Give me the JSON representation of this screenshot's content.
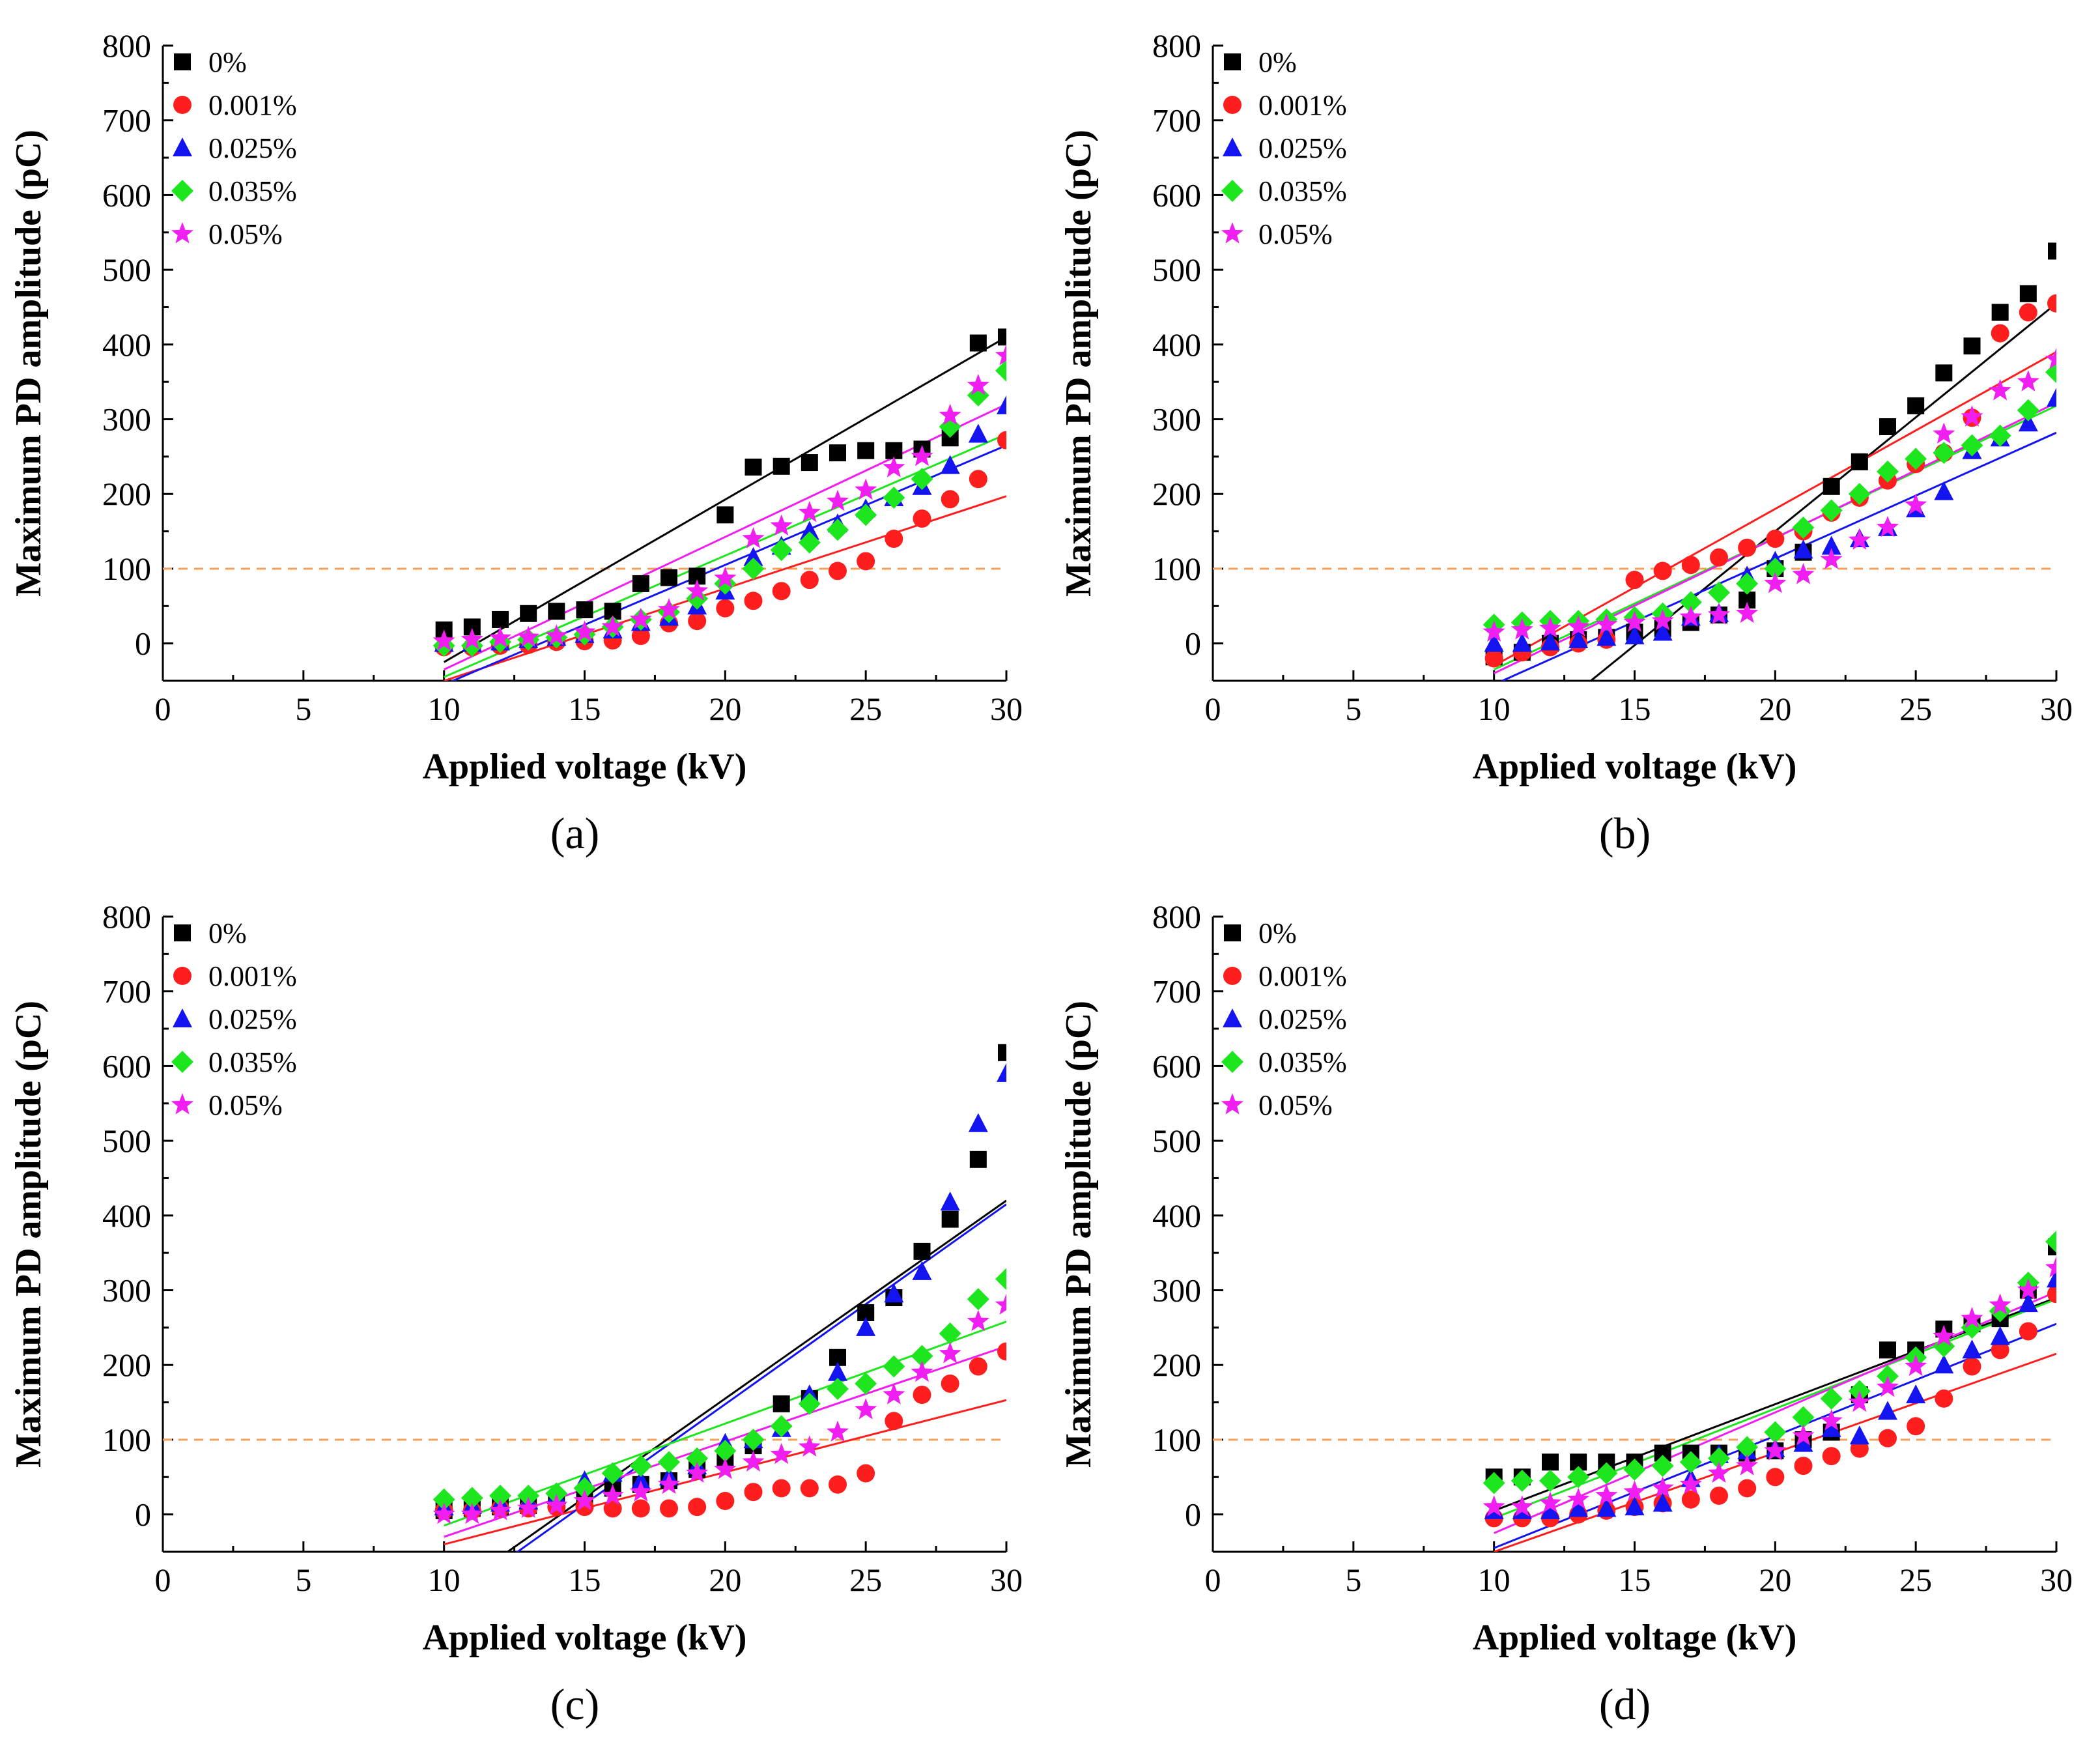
{
  "xlabel": "Applied voltage (kV)",
  "ylabel": "Maximum PD amplitude (pC)",
  "xlim": [
    0,
    30
  ],
  "ylim": [
    -50,
    800
  ],
  "xticks": [
    0,
    5,
    10,
    15,
    20,
    25,
    30
  ],
  "yticks": [
    0,
    100,
    200,
    300,
    400,
    500,
    600,
    700,
    800
  ],
  "reference_line": {
    "y": 100,
    "color": "#f5a05a"
  },
  "series_styles": [
    {
      "name": "0%",
      "color": "#000000",
      "marker": "square"
    },
    {
      "name": "0.001%",
      "color": "#ff1e1e",
      "marker": "circle"
    },
    {
      "name": "0.025%",
      "color": "#1414f0",
      "marker": "triangle"
    },
    {
      "name": "0.035%",
      "color": "#1ee61e",
      "marker": "diamond"
    },
    {
      "name": "0.05%",
      "color": "#f01ef0",
      "marker": "star"
    }
  ],
  "chart_data": [
    {
      "type": "scatter",
      "panel_label": "(a)",
      "title": "",
      "x": [
        10,
        11,
        12,
        13,
        14,
        15,
        16,
        17,
        18,
        19,
        20,
        21,
        22,
        23,
        24,
        25,
        26,
        27,
        28,
        29,
        30
      ],
      "series": [
        {
          "name": "0%",
          "values": [
            18,
            22,
            32,
            40,
            43,
            45,
            43,
            80,
            88,
            90,
            172,
            236,
            237,
            242,
            255,
            258,
            258,
            260,
            275,
            402,
            410
          ],
          "fit": [
            -25,
            410
          ]
        },
        {
          "name": "0.001%",
          "values": [
            -5,
            -5,
            -3,
            -2,
            2,
            3,
            4,
            10,
            27,
            30,
            47,
            57,
            70,
            85,
            97,
            110,
            140,
            167,
            193,
            220,
            272
          ],
          "fit": [
            -50,
            197
          ]
        },
        {
          "name": "0.025%",
          "values": [
            0,
            0,
            2,
            5,
            8,
            12,
            18,
            28,
            35,
            50,
            70,
            115,
            130,
            150,
            160,
            180,
            195,
            210,
            238,
            280,
            318
          ],
          "fit": [
            -55,
            265
          ]
        },
        {
          "name": "0.035%",
          "values": [
            -3,
            -3,
            2,
            5,
            8,
            12,
            22,
            32,
            42,
            60,
            80,
            100,
            125,
            135,
            152,
            172,
            195,
            220,
            290,
            332,
            365
          ],
          "fit": [
            -45,
            280
          ]
        },
        {
          "name": "0.05%",
          "values": [
            3,
            5,
            7,
            8,
            10,
            15,
            22,
            32,
            45,
            70,
            87,
            140,
            157,
            175,
            190,
            205,
            235,
            250,
            305,
            345,
            385
          ],
          "fit": [
            -35,
            320
          ]
        }
      ]
    },
    {
      "type": "scatter",
      "panel_label": "(b)",
      "title": "",
      "x": [
        10,
        11,
        12,
        13,
        14,
        15,
        16,
        17,
        18,
        19,
        20,
        21,
        22,
        23,
        24,
        25,
        26,
        27,
        28,
        29,
        30
      ],
      "series": [
        {
          "name": "0%",
          "values": [
            -18,
            -12,
            0,
            5,
            8,
            15,
            20,
            28,
            38,
            58,
            100,
            122,
            210,
            243,
            290,
            318,
            362,
            398,
            443,
            468,
            525
          ],
          "fit": [
            -155,
            455
          ]
        },
        {
          "name": "0.001%",
          "values": [
            -20,
            -12,
            -5,
            0,
            5,
            85,
            97,
            105,
            115,
            128,
            140,
            150,
            175,
            195,
            218,
            240,
            255,
            302,
            415,
            443,
            455
          ],
          "fit": [
            -30,
            390
          ]
        },
        {
          "name": "0.025%",
          "values": [
            0,
            0,
            2,
            5,
            8,
            10,
            15,
            35,
            40,
            90,
            110,
            125,
            130,
            140,
            155,
            180,
            203,
            258,
            275,
            295,
            328
          ],
          "fit": [
            -55,
            282
          ]
        },
        {
          "name": "0.035%",
          "values": [
            25,
            28,
            30,
            30,
            32,
            35,
            40,
            55,
            68,
            80,
            100,
            155,
            178,
            200,
            230,
            247,
            255,
            265,
            278,
            312,
            363
          ],
          "fit": [
            -35,
            318
          ]
        },
        {
          "name": "0.05%",
          "values": [
            15,
            18,
            20,
            22,
            25,
            28,
            30,
            35,
            38,
            40,
            80,
            92,
            112,
            138,
            155,
            185,
            280,
            303,
            338,
            350,
            380
          ],
          "fit": [
            -40,
            322
          ]
        }
      ]
    },
    {
      "type": "scatter",
      "panel_label": "(c)",
      "title": "",
      "x": [
        10,
        11,
        12,
        13,
        14,
        15,
        16,
        17,
        18,
        19,
        20,
        21,
        22,
        23,
        24,
        25,
        26,
        27,
        28,
        29,
        30
      ],
      "series": [
        {
          "name": "0%",
          "values": [
            5,
            8,
            10,
            12,
            18,
            25,
            35,
            40,
            45,
            60,
            75,
            92,
            148,
            155,
            210,
            270,
            290,
            352,
            395,
            475,
            618
          ],
          "fit": [
            -110,
            420
          ]
        },
        {
          "name": "0.001%",
          "values": [
            5,
            5,
            8,
            8,
            10,
            10,
            8,
            8,
            8,
            10,
            18,
            30,
            35,
            35,
            40,
            55,
            125,
            160,
            175,
            198,
            218
          ],
          "fit": [
            -40,
            153
          ]
        },
        {
          "name": "0.025%",
          "values": [
            10,
            12,
            15,
            18,
            25,
            45,
            55,
            45,
            50,
            65,
            95,
            100,
            115,
            160,
            190,
            250,
            295,
            325,
            418,
            523,
            590
          ],
          "fit": [
            -120,
            415
          ]
        },
        {
          "name": "0.035%",
          "values": [
            20,
            22,
            25,
            25,
            28,
            35,
            55,
            65,
            70,
            75,
            85,
            100,
            118,
            148,
            168,
            175,
            198,
            212,
            242,
            288,
            315
          ],
          "fit": [
            -15,
            258
          ]
        },
        {
          "name": "0.05%",
          "values": [
            0,
            0,
            5,
            8,
            12,
            18,
            25,
            30,
            40,
            55,
            60,
            70,
            80,
            90,
            110,
            140,
            160,
            190,
            215,
            258,
            280
          ],
          "fit": [
            -30,
            225
          ]
        }
      ]
    },
    {
      "type": "scatter",
      "panel_label": "(d)",
      "title": "",
      "x": [
        10,
        11,
        12,
        13,
        14,
        15,
        16,
        17,
        18,
        19,
        20,
        21,
        22,
        23,
        24,
        25,
        26,
        27,
        28,
        29,
        30
      ],
      "series": [
        {
          "name": "0%",
          "values": [
            50,
            50,
            70,
            70,
            70,
            70,
            82,
            82,
            82,
            82,
            85,
            100,
            110,
            160,
            220,
            220,
            248,
            255,
            262,
            300,
            358
          ],
          "fit": [
            5,
            290
          ]
        },
        {
          "name": "0.001%",
          "values": [
            -5,
            -5,
            -5,
            0,
            5,
            10,
            15,
            20,
            25,
            35,
            50,
            65,
            78,
            88,
            102,
            118,
            155,
            198,
            220,
            245,
            295
          ],
          "fit": [
            -50,
            215
          ]
        },
        {
          "name": "0.025%",
          "values": [
            5,
            5,
            5,
            8,
            8,
            10,
            15,
            48,
            80,
            85,
            88,
            95,
            115,
            105,
            138,
            160,
            200,
            220,
            238,
            282,
            315
          ],
          "fit": [
            -45,
            255
          ]
        },
        {
          "name": "0.035%",
          "values": [
            42,
            45,
            45,
            50,
            55,
            60,
            65,
            70,
            75,
            90,
            110,
            130,
            155,
            165,
            185,
            210,
            225,
            250,
            272,
            310,
            365
          ],
          "fit": [
            -5,
            288
          ]
        },
        {
          "name": "0.05%",
          "values": [
            10,
            10,
            15,
            20,
            25,
            30,
            35,
            40,
            55,
            65,
            85,
            105,
            125,
            150,
            170,
            198,
            238,
            262,
            280,
            300,
            330
          ],
          "fit": [
            -25,
            298
          ]
        }
      ]
    }
  ]
}
